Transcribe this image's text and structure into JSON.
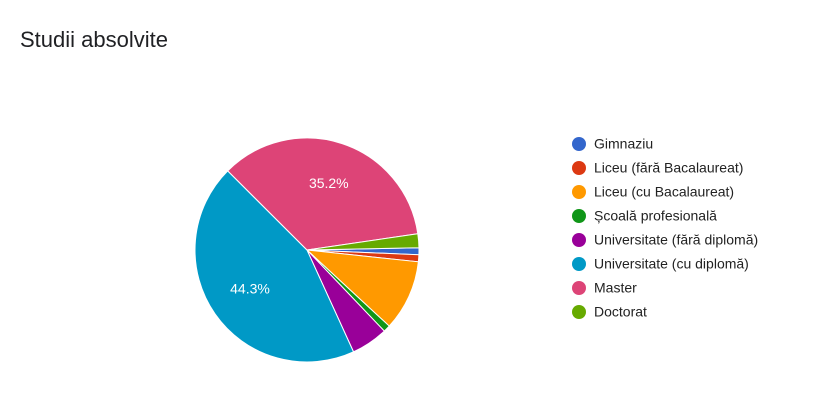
{
  "chart_data": {
    "type": "pie",
    "title": "Studii absolvite",
    "categories": [
      "Gimnaziu",
      "Liceu (fără Bacalaureat)",
      "Liceu (cu Bacalaureat)",
      "Școală profesională",
      "Universitate (fără diplomă)",
      "Universitate (cu diplomă)",
      "Master",
      "Doctorat"
    ],
    "values": [
      1,
      1,
      10.2,
      1,
      5.3,
      44.3,
      35.2,
      2
    ],
    "value_labels": [
      null,
      null,
      null,
      null,
      null,
      "44.3%",
      "35.2%",
      null
    ],
    "colors": [
      "#3366cc",
      "#dc3912",
      "#ff9900",
      "#109618",
      "#990099",
      "#0099c6",
      "#dd4477",
      "#66aa00"
    ],
    "legend": "right"
  }
}
